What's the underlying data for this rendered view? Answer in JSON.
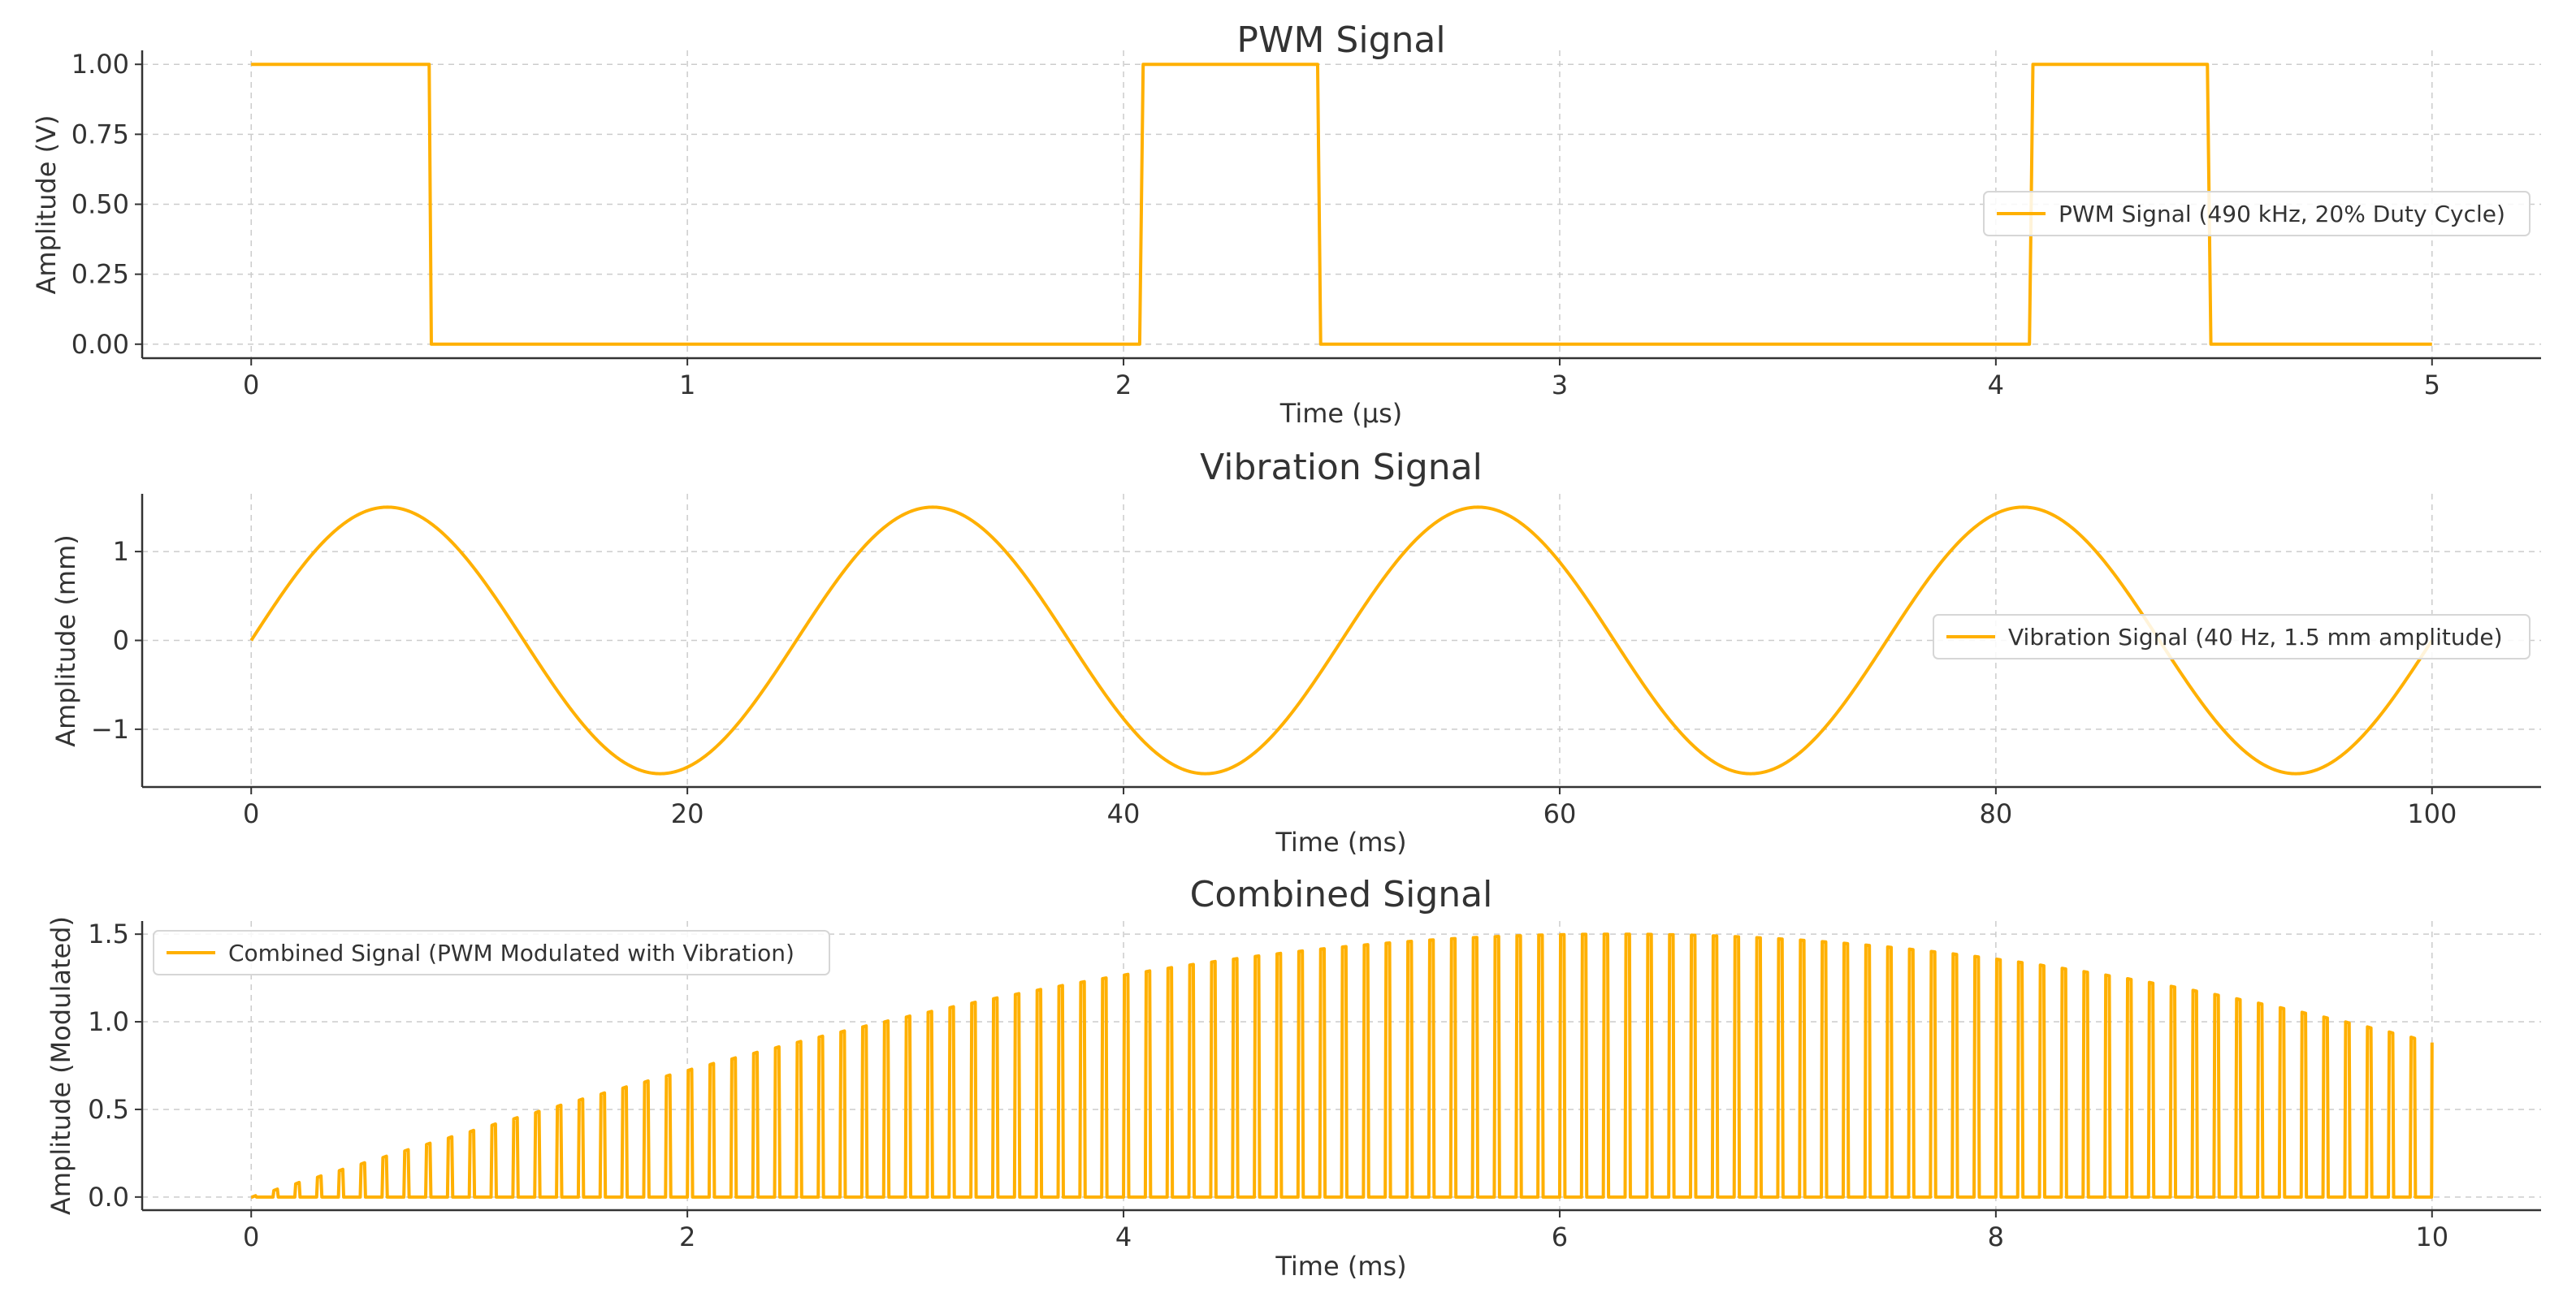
{
  "chart_data": [
    {
      "type": "line",
      "title": "PWM Signal",
      "xlabel": "Time (µs)",
      "ylabel": "Amplitude (V)",
      "xlim": [
        -0.25,
        5.25
      ],
      "ylim": [
        -0.05,
        1.05
      ],
      "xticks": [
        0,
        1,
        2,
        3,
        4,
        5
      ],
      "xtick_labels": [
        "0",
        "1",
        "2",
        "3",
        "4",
        "5"
      ],
      "yticks": [
        0,
        0.25,
        0.5,
        0.75,
        1.0
      ],
      "ytick_labels": [
        "0.00",
        "0.25",
        "0.50",
        "0.75",
        "1.00"
      ],
      "grid": true,
      "legend": "center-right",
      "series": [
        {
          "name": "PWM Signal (490 kHz, 20% Duty Cycle)",
          "color": "#FFB000",
          "x": [
            0,
            0.408,
            0.413,
            2.037,
            2.045,
            2.445,
            2.452,
            4.077,
            4.085,
            4.485,
            4.493,
            5.0
          ],
          "y": [
            1,
            1,
            0,
            0,
            1,
            1,
            0,
            0,
            1,
            1,
            0,
            0
          ]
        }
      ]
    },
    {
      "type": "line",
      "title": "Vibration Signal",
      "xlabel": "Time (ms)",
      "ylabel": "Amplitude (mm)",
      "xlim": [
        -5,
        105
      ],
      "ylim": [
        -1.65,
        1.65
      ],
      "xticks": [
        0,
        20,
        40,
        60,
        80,
        100
      ],
      "xtick_labels": [
        "0",
        "20",
        "40",
        "60",
        "80",
        "100"
      ],
      "yticks": [
        -1,
        0,
        1
      ],
      "ytick_labels": [
        "−1",
        "0",
        "1"
      ],
      "grid": true,
      "legend": "center-right",
      "series": [
        {
          "name": "Vibration Signal (40 Hz, 1.5 mm amplitude)",
          "color": "#FFB000",
          "function": "1.5*sin(2*pi*40*t)",
          "x_range": [
            0,
            100
          ]
        }
      ]
    },
    {
      "type": "line",
      "title": "Combined Signal",
      "xlabel": "Time (ms)",
      "ylabel": "Amplitude (Modulated)",
      "xlim": [
        -0.5,
        10.5
      ],
      "ylim": [
        -0.075,
        1.575
      ],
      "xticks": [
        0,
        2,
        4,
        6,
        8,
        10
      ],
      "xtick_labels": [
        "0",
        "2",
        "4",
        "6",
        "8",
        "10"
      ],
      "yticks": [
        0,
        0.5,
        1.0,
        1.5
      ],
      "ytick_labels": [
        "0.0",
        "0.5",
        "1.0",
        "1.5"
      ],
      "grid": true,
      "legend": "upper-left",
      "series": [
        {
          "name": "Combined Signal (PWM Modulated with Vibration)",
          "color": "#FFB000",
          "function": "pulse train of 100 pulses (period 0.1 ms, 20% duty cycle), pulse height = 1.5*sin(2*pi*40*t)",
          "pulse_count": 100,
          "x_range": [
            0,
            10
          ]
        }
      ]
    }
  ]
}
